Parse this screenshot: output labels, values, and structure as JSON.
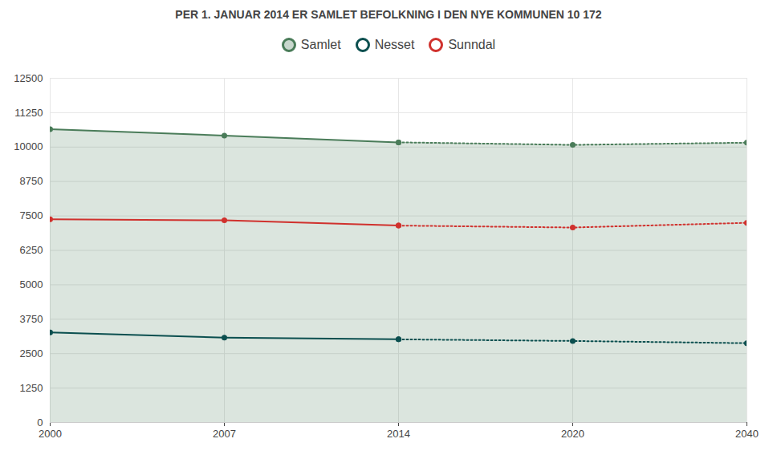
{
  "chart_data": {
    "type": "line",
    "title": "PER 1. JANUAR 2014 ER SAMLET BEFOLKNING I DEN NYE KOMMUNEN 10 172",
    "categories": [
      "2000",
      "2007",
      "2014",
      "2020",
      "2040"
    ],
    "series": [
      {
        "name": "Samlet",
        "color": "#4a7c59",
        "type": "area",
        "line_style": "solid",
        "marker": "circle",
        "values": [
          10650,
          10420,
          10172,
          null,
          null
        ]
      },
      {
        "name": "Samlet",
        "color": "#4a7c59",
        "type": "area",
        "line_style": "dotted",
        "marker": "circle",
        "values": [
          null,
          null,
          10172,
          10080,
          10160
        ]
      },
      {
        "name": "Nesset",
        "color": "#0b4f4f",
        "type": "line",
        "line_style": "solid",
        "marker": "circle",
        "values": [
          3270,
          3080,
          3020,
          null,
          null
        ]
      },
      {
        "name": "Nesset",
        "color": "#0b4f4f",
        "type": "line",
        "line_style": "dotted",
        "marker": "circle",
        "values": [
          null,
          null,
          3020,
          2960,
          2880
        ]
      },
      {
        "name": "Sunndal",
        "color": "#d0312d",
        "type": "line",
        "line_style": "solid",
        "marker": "circle",
        "values": [
          7380,
          7340,
          7150,
          null,
          null
        ]
      },
      {
        "name": "Sunndal",
        "color": "#d0312d",
        "type": "line",
        "line_style": "dotted",
        "marker": "circle",
        "values": [
          null,
          null,
          7150,
          7080,
          7250
        ]
      }
    ],
    "ylim": [
      0,
      12500
    ],
    "yticks": [
      0,
      1250,
      2500,
      3750,
      5000,
      6250,
      7500,
      8750,
      10000,
      11250,
      12500
    ],
    "grid": true,
    "legend": "top"
  }
}
